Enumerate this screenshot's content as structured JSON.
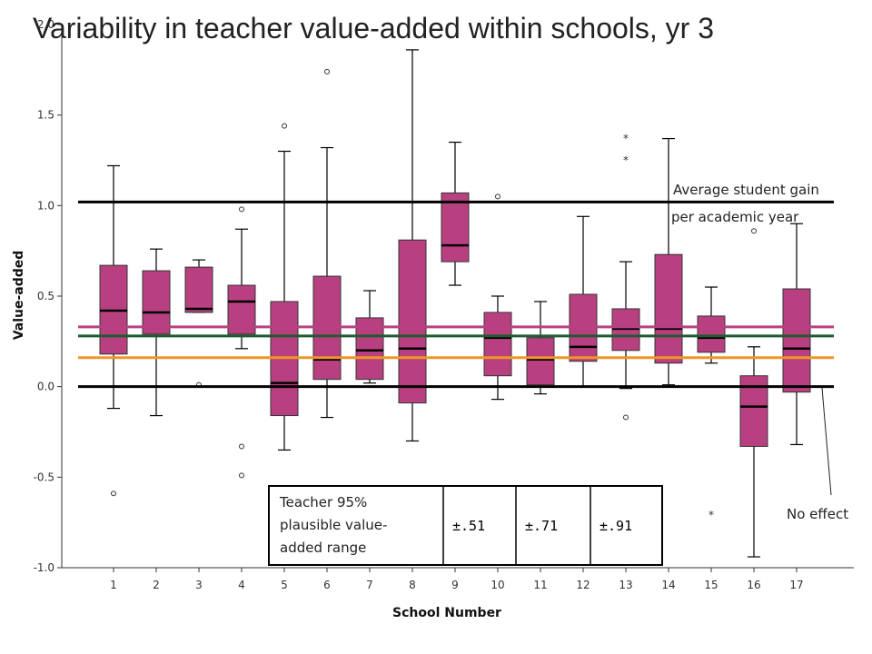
{
  "chart_data": {
    "type": "box",
    "title": "Variability in teacher value-added within schools, yr 3",
    "xlabel": "School Number",
    "ylabel": "Value-added",
    "ylim": [
      -1.0,
      2.0
    ],
    "yticks": [
      "-1.0",
      "-0.5",
      "0.0",
      "0.5",
      "1.0",
      "1.5",
      "2.0"
    ],
    "box_color": "#b94080",
    "categories": [
      "1",
      "2",
      "3",
      "4",
      "5",
      "6",
      "7",
      "8",
      "9",
      "10",
      "11",
      "12",
      "13",
      "14",
      "15",
      "16",
      "17"
    ],
    "boxes": [
      {
        "school": "1",
        "whisker_low": -0.12,
        "q1": 0.18,
        "median": 0.42,
        "q3": 0.67,
        "whisker_high": 1.22,
        "outliers": [
          -0.59
        ],
        "extremes": []
      },
      {
        "school": "2",
        "whisker_low": -0.16,
        "q1": 0.29,
        "median": 0.41,
        "q3": 0.64,
        "whisker_high": 0.76,
        "outliers": [],
        "extremes": []
      },
      {
        "school": "3",
        "whisker_low": 0.41,
        "q1": 0.41,
        "median": 0.43,
        "q3": 0.66,
        "whisker_high": 0.7,
        "outliers": [
          0.01
        ],
        "extremes": []
      },
      {
        "school": "4",
        "whisker_low": 0.21,
        "q1": 0.29,
        "median": 0.47,
        "q3": 0.56,
        "whisker_high": 0.87,
        "outliers": [
          0.98,
          -0.33,
          -0.49
        ],
        "extremes": []
      },
      {
        "school": "5",
        "whisker_low": -0.35,
        "q1": -0.16,
        "median": 0.02,
        "q3": 0.47,
        "whisker_high": 1.3,
        "outliers": [
          1.44
        ],
        "extremes": []
      },
      {
        "school": "6",
        "whisker_low": -0.17,
        "q1": 0.04,
        "median": 0.15,
        "q3": 0.61,
        "whisker_high": 1.32,
        "outliers": [
          1.74
        ],
        "extremes": []
      },
      {
        "school": "7",
        "whisker_low": 0.02,
        "q1": 0.04,
        "median": 0.2,
        "q3": 0.38,
        "whisker_high": 0.53,
        "outliers": [],
        "extremes": []
      },
      {
        "school": "8",
        "whisker_low": -0.3,
        "q1": -0.09,
        "median": 0.21,
        "q3": 0.81,
        "whisker_high": 1.86,
        "outliers": [],
        "extremes": []
      },
      {
        "school": "9",
        "whisker_low": 0.56,
        "q1": 0.69,
        "median": 0.78,
        "q3": 1.07,
        "whisker_high": 1.35,
        "outliers": [],
        "extremes": []
      },
      {
        "school": "10",
        "whisker_low": -0.07,
        "q1": 0.06,
        "median": 0.27,
        "q3": 0.41,
        "whisker_high": 0.5,
        "outliers": [
          1.05
        ],
        "extremes": []
      },
      {
        "school": "11",
        "whisker_low": -0.04,
        "q1": 0.01,
        "median": 0.15,
        "q3": 0.27,
        "whisker_high": 0.47,
        "outliers": [],
        "extremes": []
      },
      {
        "school": "12",
        "whisker_low": 0.0,
        "q1": 0.14,
        "median": 0.22,
        "q3": 0.51,
        "whisker_high": 0.94,
        "outliers": [],
        "extremes": []
      },
      {
        "school": "13",
        "whisker_low": -0.01,
        "q1": 0.2,
        "median": 0.32,
        "q3": 0.43,
        "whisker_high": 0.69,
        "outliers": [
          -0.17
        ],
        "extremes": [
          1.38,
          1.26
        ]
      },
      {
        "school": "14",
        "whisker_low": 0.01,
        "q1": 0.13,
        "median": 0.32,
        "q3": 0.73,
        "whisker_high": 1.37,
        "outliers": [],
        "extremes": []
      },
      {
        "school": "15",
        "whisker_low": 0.13,
        "q1": 0.19,
        "median": 0.27,
        "q3": 0.39,
        "whisker_high": 0.55,
        "outliers": [],
        "extremes": [
          -0.7
        ]
      },
      {
        "school": "16",
        "whisker_low": -0.94,
        "q1": -0.33,
        "median": -0.11,
        "q3": 0.06,
        "whisker_high": 0.22,
        "outliers": [
          0.86
        ],
        "extremes": []
      },
      {
        "school": "17",
        "whisker_low": -0.32,
        "q1": -0.03,
        "median": 0.21,
        "q3": 0.54,
        "whisker_high": 0.9,
        "outliers": [],
        "extremes": []
      }
    ],
    "reference_lines": [
      {
        "value": 1.02,
        "color": "#000000"
      },
      {
        "value": 0.33,
        "color": "#b94080"
      },
      {
        "value": 0.28,
        "color": "#1f5a32"
      },
      {
        "value": 0.16,
        "color": "#f0952a"
      },
      {
        "value": 0.0,
        "color": "#000000"
      }
    ],
    "annotations": {
      "avg_gain_line1": "Average student gain",
      "avg_gain_line2": "per academic year",
      "no_effect": "No effect"
    },
    "legend_table": {
      "header_line1": "Teacher 95%",
      "header_line2": "plausible value-",
      "header_line3": "added range",
      "cells": [
        {
          "text": "±.51",
          "color": "#f0952a"
        },
        {
          "text": "±.71",
          "color": "#1f9a4a"
        },
        {
          "text": "±.91",
          "color": "#b94080"
        }
      ]
    }
  }
}
